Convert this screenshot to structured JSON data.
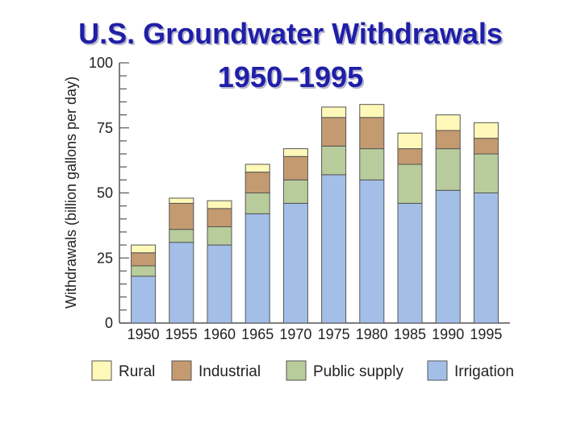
{
  "title": {
    "line1": "U.S. Groundwater Withdrawals",
    "line2": "1950–1995"
  },
  "chart_data": {
    "type": "bar",
    "stacked": true,
    "categories": [
      "1950",
      "1955",
      "1960",
      "1965",
      "1970",
      "1975",
      "1980",
      "1985",
      "1990",
      "1995"
    ],
    "series": [
      {
        "name": "Irrigation",
        "color": "#a3bfe8",
        "values": [
          18,
          31,
          30,
          42,
          46,
          57,
          55,
          46,
          51,
          50
        ]
      },
      {
        "name": "Public supply",
        "color": "#b8cc9c",
        "values": [
          4,
          5,
          7,
          8,
          9,
          11,
          12,
          15,
          16,
          15
        ]
      },
      {
        "name": "Industrial",
        "color": "#c49a70",
        "values": [
          5,
          10,
          7,
          8,
          9,
          11,
          12,
          6,
          7,
          6
        ]
      },
      {
        "name": "Rural",
        "color": "#fff8b8",
        "values": [
          3,
          2,
          3,
          3,
          3,
          4,
          5,
          6,
          6,
          6
        ]
      }
    ],
    "ylabel": "Withdrawals (billion gallons per day)",
    "xlabel": "",
    "ylim": [
      0,
      100
    ],
    "yticks": [
      "0",
      "25",
      "50",
      "75",
      "100"
    ],
    "legend": {
      "placement": "bottom",
      "order": [
        "Rural",
        "Industrial",
        "Public supply",
        "Irrigation"
      ]
    },
    "grid": false
  }
}
